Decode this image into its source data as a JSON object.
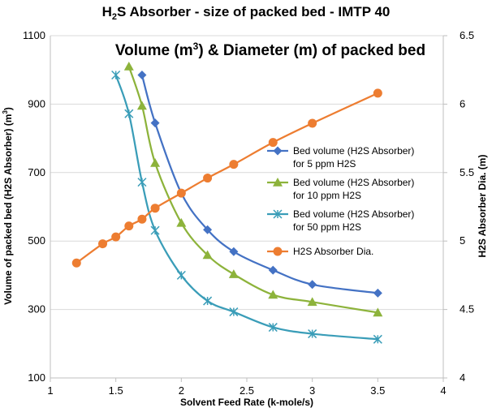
{
  "chart_data": {
    "type": "line",
    "title": {
      "main": "S Absorber - size of packed bed - IMTP 40",
      "subtitle_prefix": "Volume (m",
      "subtitle_suffix": ") & Diameter (m) of packed bed"
    },
    "xlabel": "Solvent Feed Rate (k-mole/s)",
    "ylabel_left": "Volume of packed bed (H2S Absorber)  (m",
    "ylabel_right": "H2S Absorber Dia. (m)",
    "xlim": [
      1,
      4
    ],
    "ylim_left": [
      100,
      1100
    ],
    "ylim_right": [
      4,
      6.5
    ],
    "x_ticks": [
      "1",
      "1.5",
      "2",
      "2.5",
      "3",
      "3.5",
      "4"
    ],
    "y_left_ticks": [
      "100",
      "300",
      "500",
      "700",
      "900",
      "1100"
    ],
    "y_right_ticks": [
      "4",
      "4.5",
      "5",
      "5.5",
      "6",
      "6.5"
    ],
    "grid": "horizontal",
    "legend_position": "right",
    "series": [
      {
        "name": "Bed volume (H2S Absorber) for 5 ppm H2S",
        "name_lines": [
          "Bed volume (H2S Absorber)",
          "for 5 ppm H2S"
        ],
        "axis": "left",
        "color": "#4472C4",
        "marker": "diamond",
        "x": [
          1.7,
          1.8,
          2.0,
          2.2,
          2.4,
          2.7,
          3.0,
          3.5
        ],
        "y": [
          985,
          845,
          640,
          533,
          469,
          415,
          373,
          348
        ]
      },
      {
        "name": "Bed volume (H2S Absorber) for 10 ppm H2S",
        "name_lines": [
          "Bed volume (H2S Absorber)",
          "for 10 ppm H2S"
        ],
        "axis": "left",
        "color": "#8DB33B",
        "marker": "triangle",
        "x": [
          1.6,
          1.7,
          1.8,
          2.0,
          2.2,
          2.4,
          2.7,
          3.0,
          3.5
        ],
        "y": [
          1010,
          895,
          728,
          553,
          459,
          403,
          343,
          322,
          291
        ]
      },
      {
        "name": "Bed volume (H2S Absorber) for 50 ppm H2S",
        "name_lines": [
          "Bed volume (H2S Absorber)",
          "for 50 ppm H2S"
        ],
        "axis": "left",
        "color": "#3A9DB8",
        "marker": "star",
        "x": [
          1.5,
          1.6,
          1.7,
          1.8,
          2.0,
          2.2,
          2.4,
          2.7,
          3.0,
          3.5
        ],
        "y": [
          985,
          872,
          672,
          531,
          400,
          325,
          293,
          248,
          229,
          213
        ]
      },
      {
        "name": "H2S Absorber Dia.",
        "name_lines": [
          "H2S Absorber Dia."
        ],
        "axis": "right",
        "color": "#ED7D31",
        "marker": "circle",
        "x": [
          1.2,
          1.4,
          1.5,
          1.6,
          1.7,
          1.8,
          2.0,
          2.2,
          2.4,
          2.7,
          3.0,
          3.5
        ],
        "y": [
          4.84,
          4.98,
          5.03,
          5.11,
          5.16,
          5.24,
          5.35,
          5.46,
          5.56,
          5.72,
          5.86,
          6.08
        ]
      }
    ]
  }
}
